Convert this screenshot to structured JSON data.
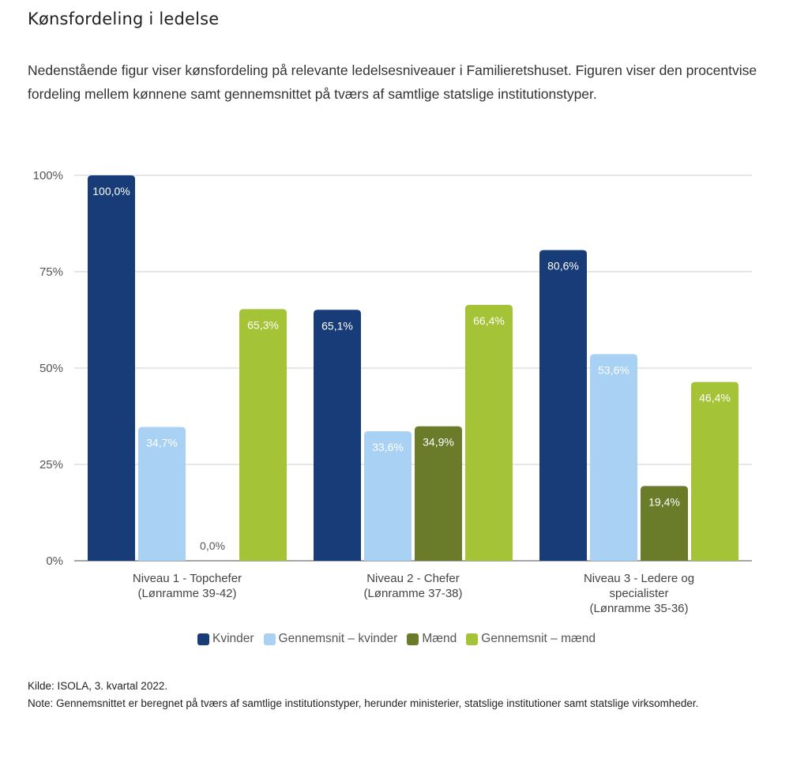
{
  "page": {
    "title": "Kønsfordeling i ledelse",
    "intro": "Nedenstående figur viser kønsfordeling på relevante ledelsesniveauer i Familieretshuset. Figuren viser den procentvise fordeling mellem kønnene samt gennemsnittet på tværs af samtlige statslige institutionstyper.",
    "source": "Kilde: ISOLA, 3. kvartal 2022.",
    "note": "Note: Gennemsnittet er beregnet på tværs af samtlige institutionstyper, herunder ministerier, statslige institutioner samt statslige virksomheder."
  },
  "chart_data": {
    "type": "bar",
    "title": "",
    "xlabel": "",
    "ylabel": "",
    "ylim": [
      0,
      100
    ],
    "yticks": [
      0,
      25,
      50,
      75,
      100
    ],
    "ytick_labels": [
      "0%",
      "25%",
      "50%",
      "75%",
      "100%"
    ],
    "grid": true,
    "legend_position": "bottom",
    "categories": [
      [
        "Niveau 1 - Topchefer",
        "(Lønramme 39-42)"
      ],
      [
        "Niveau 2 - Chefer",
        "(Lønramme 37-38)"
      ],
      [
        "Niveau 3 - Ledere og",
        "specialister",
        "(Lønramme 35-36)"
      ]
    ],
    "series": [
      {
        "name": "Kvinder",
        "color": "#173c78",
        "label_color": "#ffffff",
        "values": [
          100.0,
          65.1,
          80.6
        ],
        "labels": [
          "100,0%",
          "65,1%",
          "80,6%"
        ]
      },
      {
        "name": "Gennemsnit – kvinder",
        "color": "#a8d1f4",
        "label_color": "#ffffff",
        "values": [
          34.7,
          33.6,
          53.6
        ],
        "labels": [
          "34,7%",
          "33,6%",
          "53,6%"
        ]
      },
      {
        "name": "Mænd",
        "color": "#6a7b2a",
        "label_color": "#ffffff",
        "values": [
          0.0,
          34.9,
          19.4
        ],
        "labels": [
          "0,0%",
          "34,9%",
          "19,4%"
        ]
      },
      {
        "name": "Gennemsnit – mænd",
        "color": "#a4c337",
        "label_color": "#ffffff",
        "values": [
          65.3,
          66.4,
          46.4
        ],
        "labels": [
          "65,3%",
          "66,4%",
          "46,4%"
        ]
      }
    ]
  }
}
